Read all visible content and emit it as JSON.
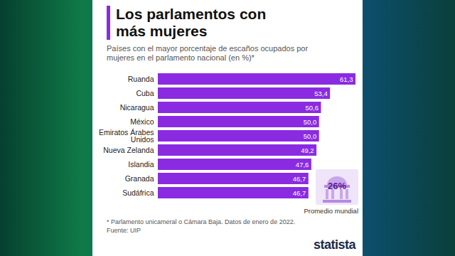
{
  "chart_data": {
    "type": "bar",
    "orientation": "horizontal",
    "title": "Los parlamentos con más mujeres",
    "subtitle": "Países con el mayor porcentaje de escaños ocupados por mujeres en el parlamento nacional (en %)*",
    "categories": [
      "Ruanda",
      "Cuba",
      "Nicaragua",
      "México",
      "Emiratos Árabes Unidos",
      "Nueva Zelanda",
      "Islandia",
      "Granada",
      "Sudáfrica"
    ],
    "values": [
      61.3,
      53.4,
      50.6,
      50.0,
      50.0,
      49.2,
      47.6,
      46.7,
      46.7
    ],
    "value_labels": [
      "61,3",
      "53,4",
      "50,6",
      "50,0",
      "50,0",
      "49,2",
      "47,6",
      "46,7",
      "46,7"
    ],
    "data_labels": true,
    "color": "#8a2be2",
    "xlim": [
      0,
      61.3
    ],
    "tick_labels": "y",
    "grid": false,
    "annotation": {
      "label": "26%",
      "text": "Promedio mundial"
    },
    "footnote": "* Parlamento unicameral o Cámara Baja. Datos de enero de 2022.",
    "source": "Fuente: UIP",
    "brand": "statista"
  }
}
